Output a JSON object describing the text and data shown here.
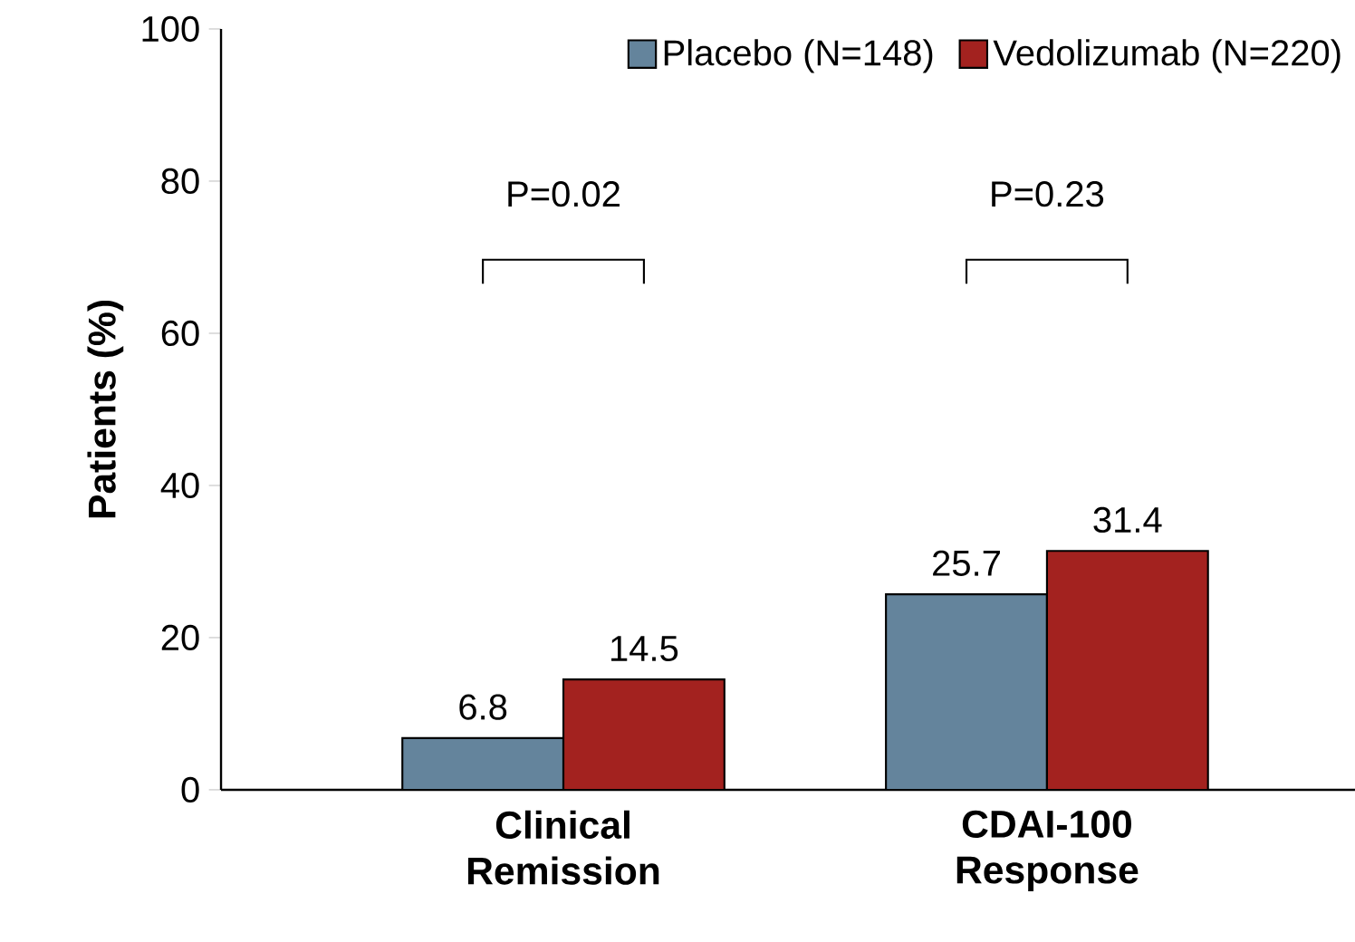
{
  "chart_data": {
    "type": "bar",
    "ylabel": "Patients (%)",
    "categories": [
      "Clinical Remission",
      "CDAI-100 Response"
    ],
    "series": [
      {
        "name": "Placebo (N=148)",
        "color": "#64849c",
        "values": [
          6.8,
          25.7
        ]
      },
      {
        "name": "Vedolizumab (N=220)",
        "color": "#a3221f",
        "values": [
          14.5,
          31.4
        ]
      }
    ],
    "ylim": [
      0,
      100
    ],
    "yticks": [
      0,
      20,
      40,
      60,
      80,
      100
    ],
    "data_labels": true,
    "legend": "top right",
    "grid": false,
    "annotations": [
      "P=0.02",
      "P=0.23"
    ]
  }
}
